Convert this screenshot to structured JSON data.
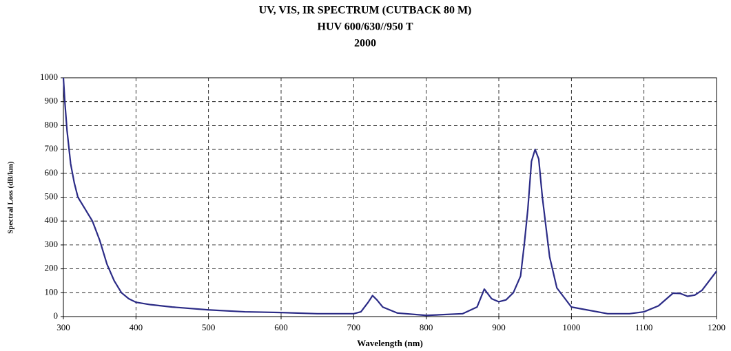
{
  "chart_data": {
    "type": "line",
    "title": "UV, VIS, IR  SPECTRUM (CUTBACK 80 M)",
    "subtitle": [
      "HUV 600/630//950 T",
      "2000"
    ],
    "x_label": "Wavelength  (nm)",
    "y_label": "Spectral Loss  (dB/km)",
    "x": [
      300,
      302,
      305,
      310,
      315,
      320,
      330,
      340,
      350,
      360,
      370,
      380,
      390,
      400,
      420,
      450,
      500,
      550,
      600,
      650,
      700,
      710,
      720,
      726,
      732,
      740,
      760,
      800,
      850,
      870,
      880,
      890,
      900,
      910,
      920,
      930,
      935,
      940,
      945,
      950,
      955,
      960,
      970,
      980,
      1000,
      1050,
      1080,
      1100,
      1120,
      1140,
      1150,
      1160,
      1170,
      1180,
      1200
    ],
    "series": [
      {
        "color": "#2b2b86",
        "values": [
          1000,
          900,
          780,
          640,
          560,
          500,
          450,
          400,
          320,
          220,
          150,
          100,
          75,
          60,
          50,
          40,
          28,
          20,
          17,
          12,
          12,
          20,
          60,
          88,
          70,
          40,
          15,
          5,
          12,
          40,
          115,
          75,
          62,
          70,
          100,
          170,
          300,
          450,
          650,
          700,
          660,
          500,
          250,
          120,
          40,
          12,
          12,
          20,
          45,
          98,
          97,
          85,
          90,
          110,
          190
        ]
      }
    ],
    "xlim": [
      300,
      1200
    ],
    "xticks": [
      300,
      400,
      500,
      600,
      700,
      800,
      900,
      1000,
      1100,
      1200
    ],
    "ylim": [
      0,
      1000
    ],
    "yticks": [
      0,
      100,
      200,
      300,
      400,
      500,
      600,
      700,
      800,
      900,
      1000
    ],
    "grid": true
  }
}
